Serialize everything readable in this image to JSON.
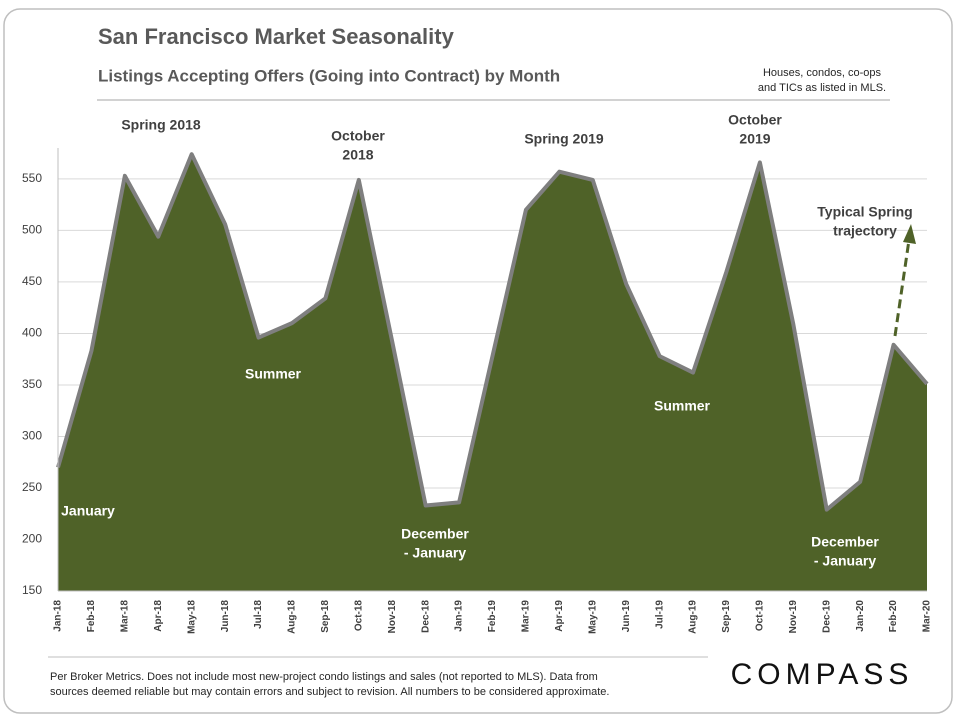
{
  "chart_data": {
    "type": "area",
    "title": "San Francisco Market Seasonality",
    "subtitle": "Listings Accepting Offers (Going into Contract) by Month",
    "note": [
      "Houses, condos, co-ops",
      "and TICs as listed in MLS."
    ],
    "categories": [
      "Jan-18",
      "Feb-18",
      "Mar-18",
      "Apr-18",
      "May-18",
      "Jun-18",
      "Jul-18",
      "Aug-18",
      "Sep-18",
      "Oct-18",
      "Nov-18",
      "Dec-18",
      "Jan-19",
      "Feb-19",
      "Mar-19",
      "Apr-19",
      "May-19",
      "Jun-19",
      "Jul-19",
      "Aug-19",
      "Sep-19",
      "Oct-19",
      "Nov-19",
      "Dec-19",
      "Jan-20",
      "Feb-20",
      "Mar-20"
    ],
    "values": [
      270,
      383,
      553,
      494,
      574,
      506,
      396,
      410,
      434,
      549,
      392,
      233,
      236,
      378,
      520,
      557,
      549,
      448,
      378,
      362,
      460,
      566,
      409,
      229,
      256,
      389,
      351
    ],
    "color": "#4f6228",
    "line_color": "#7f7f7f",
    "ylim": [
      150,
      580
    ],
    "yticks": [
      150,
      200,
      250,
      300,
      350,
      400,
      450,
      500,
      550
    ],
    "grid": true,
    "annotations": [
      {
        "lines": [
          "Spring 2018"
        ]
      },
      {
        "lines": [
          "October",
          "2018"
        ]
      },
      {
        "lines": [
          "Summer"
        ]
      },
      {
        "lines": [
          "January"
        ]
      },
      {
        "lines": [
          "December",
          "- January"
        ]
      },
      {
        "lines": [
          "Spring 2019"
        ]
      },
      {
        "lines": [
          "October",
          "2019"
        ]
      },
      {
        "lines": [
          "Summer"
        ]
      },
      {
        "lines": [
          "December",
          "- January"
        ]
      },
      {
        "lines": [
          "Typical Spring",
          "trajectory"
        ]
      }
    ]
  },
  "footer": [
    "Per Broker Metrics. Does not include most new-project condo listings and sales (not reported to MLS). Data from",
    "sources deemed reliable but may contain errors and subject to revision.  All numbers to be considered approximate."
  ],
  "logo": "COMPASS"
}
